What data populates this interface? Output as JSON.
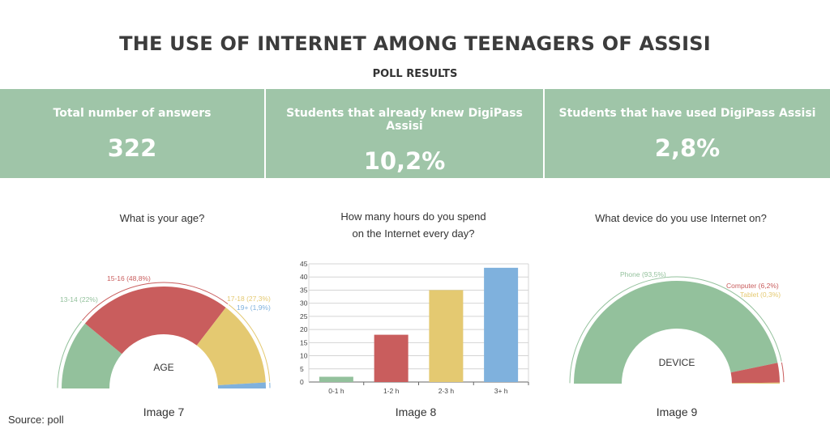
{
  "header": {
    "title": "THE USE OF INTERNET AMONG TEENAGERS OF ASSISI",
    "subtitle": "POLL RESULTS"
  },
  "stats": [
    {
      "label": "Total number of answers",
      "value": "322"
    },
    {
      "label": "Students that already knew DigiPass Assisi",
      "value": "10,2%"
    },
    {
      "label": "Students that have used DigiPass Assisi",
      "value": "2,8%"
    }
  ],
  "colors": {
    "banner": "#9fc5a8",
    "green": "#93c19c",
    "red": "#c95d5d",
    "yellow": "#e4c971",
    "blue": "#7fb1dd"
  },
  "source": "Source: poll",
  "chart_data": [
    {
      "type": "pie",
      "subtype": "half-donut",
      "question": "What is your age?",
      "center_label": "AGE",
      "caption": "Image 7",
      "slices": [
        {
          "label": "13-14 (22%)",
          "value": 22,
          "color": "#93c19c"
        },
        {
          "label": "15-16 (48,8%)",
          "value": 48.8,
          "color": "#c95d5d"
        },
        {
          "label": "17-18 (27,3%)",
          "value": 27.3,
          "color": "#e4c971"
        },
        {
          "label": "19+ (1,9%)",
          "value": 1.9,
          "color": "#7fb1dd"
        }
      ]
    },
    {
      "type": "bar",
      "question_lines": [
        "How many hours do you spend",
        "on the Internet every day?"
      ],
      "caption": "Image 8",
      "categories": [
        "0-1 h",
        "1-2 h",
        "2-3 h",
        "3+ h"
      ],
      "values": [
        2,
        18,
        35,
        43.5
      ],
      "colors": [
        "#93c19c",
        "#c95d5d",
        "#e4c971",
        "#7fb1dd"
      ],
      "ylim": [
        0,
        45
      ],
      "yticks": [
        0,
        5,
        10,
        15,
        20,
        25,
        30,
        35,
        40,
        45
      ],
      "grid": true
    },
    {
      "type": "pie",
      "subtype": "half-donut",
      "question": "What device do you use Internet on?",
      "center_label": "DEVICE",
      "caption": "Image 9",
      "slices": [
        {
          "label": "Phone (93,5%)",
          "value": 93.5,
          "color": "#93c19c"
        },
        {
          "label": "Computer (6,2%)",
          "value": 6.2,
          "color": "#c95d5d"
        },
        {
          "label": "Tablet (0,3%)",
          "value": 0.3,
          "color": "#e4c971"
        }
      ]
    }
  ]
}
